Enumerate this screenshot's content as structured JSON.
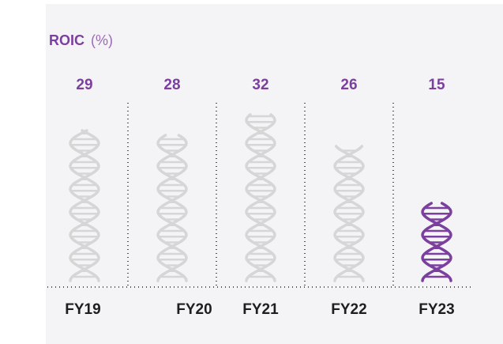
{
  "chart_data": {
    "type": "pictogram",
    "title": "ROIC",
    "unit": "(%)",
    "categories": [
      "FY19",
      "FY20",
      "FY21",
      "FY22",
      "FY23"
    ],
    "values": [
      29,
      28,
      32,
      26,
      15
    ],
    "colors": [
      "#d6d6d6",
      "#d6d6d6",
      "#d6d6d6",
      "#d6d6d6",
      "#7b3f9e"
    ]
  }
}
